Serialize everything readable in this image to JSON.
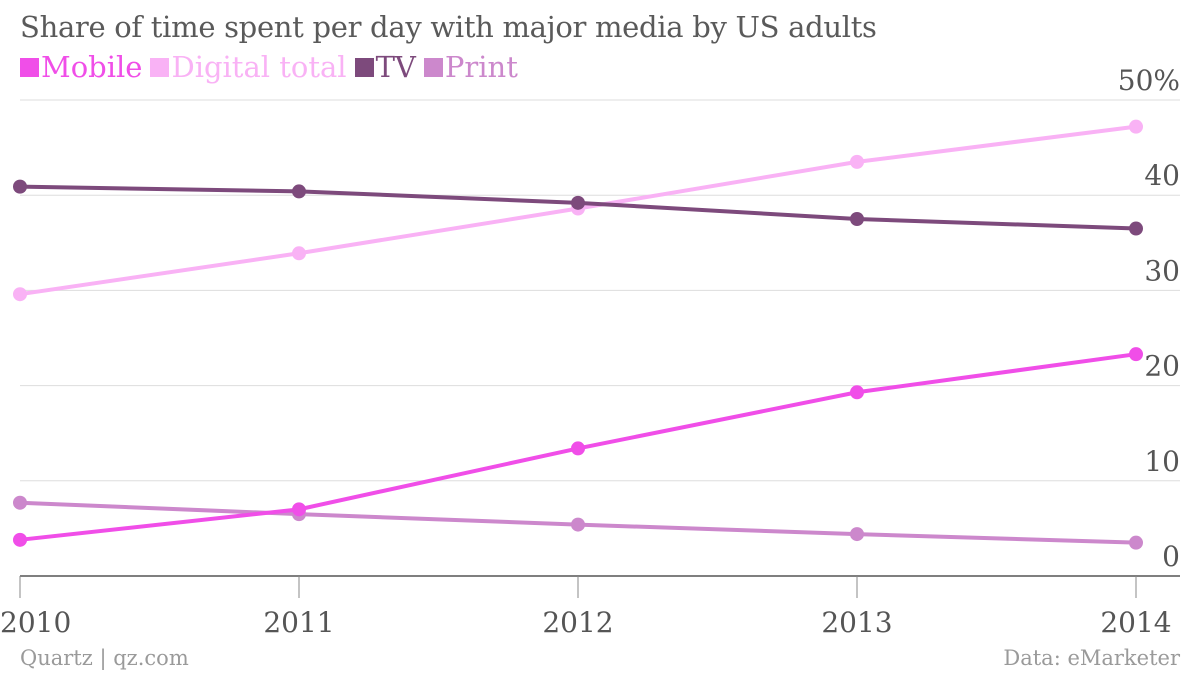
{
  "chart_data": {
    "type": "line",
    "title": "Share of time spent per day with major media by US adults",
    "x": [
      "2010",
      "2011",
      "2012",
      "2013",
      "2014"
    ],
    "yticks": [
      "0",
      "10",
      "20",
      "30",
      "40",
      "50%"
    ],
    "ylim": [
      0,
      50
    ],
    "grid": true,
    "legend_position": "top-left",
    "series": [
      {
        "name": "Mobile",
        "color": "#f04ee8",
        "values": [
          3.8,
          7.0,
          13.4,
          19.3,
          23.3
        ]
      },
      {
        "name": "Digital total",
        "color": "#f9b2f5",
        "values": [
          29.6,
          33.9,
          38.6,
          43.5,
          47.2
        ]
      },
      {
        "name": "TV",
        "color": "#7d4a7c",
        "values": [
          40.9,
          40.4,
          39.2,
          37.5,
          36.5
        ]
      },
      {
        "name": "Print",
        "color": "#cc88cc",
        "values": [
          7.7,
          6.5,
          5.4,
          4.4,
          3.5
        ]
      }
    ]
  },
  "footer": {
    "source_left": "Quartz | qz.com",
    "source_right": "Data: eMarketer"
  }
}
